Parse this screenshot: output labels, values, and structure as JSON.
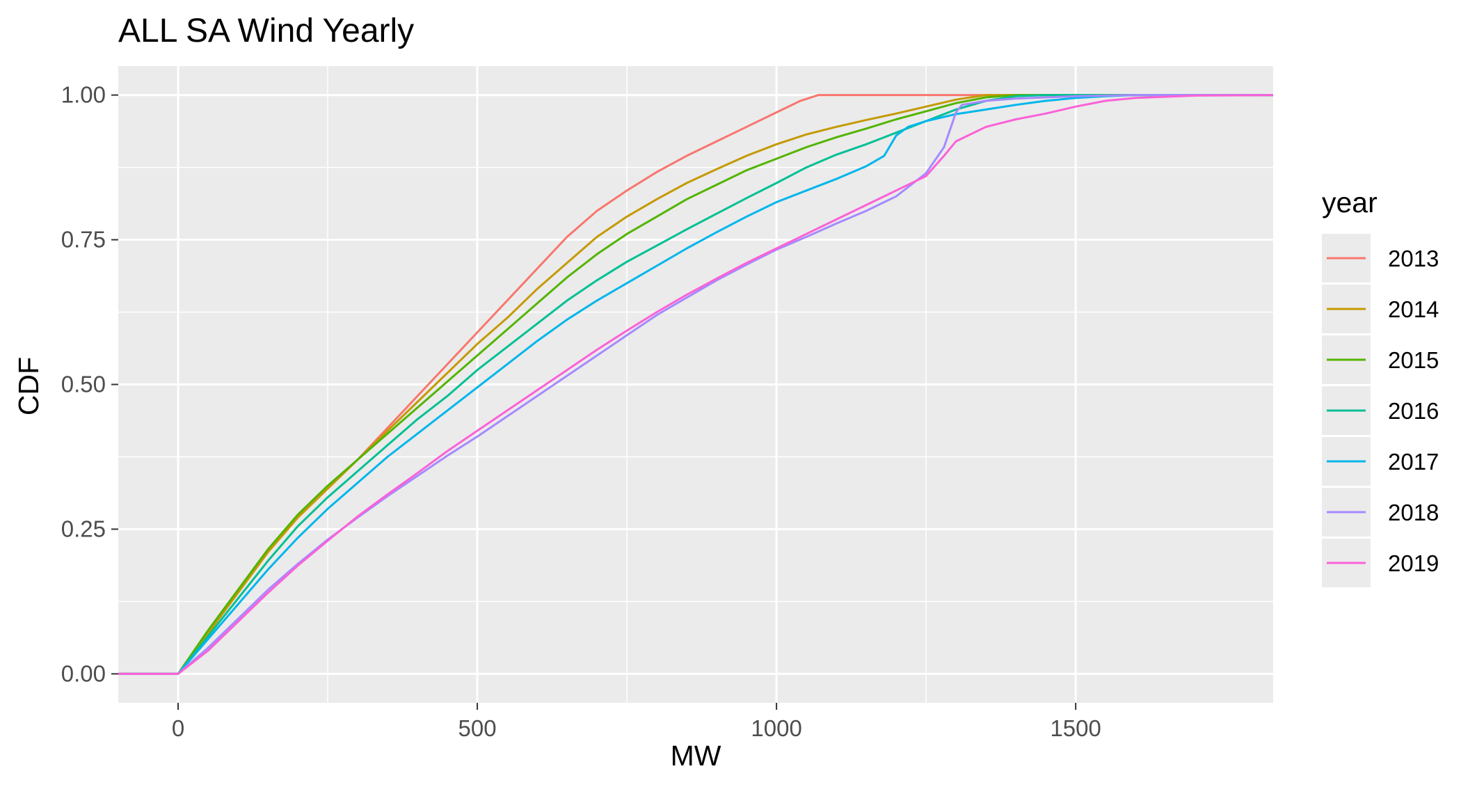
{
  "chart_data": {
    "type": "line",
    "title": "ALL SA Wind Yearly",
    "xlabel": "MW",
    "ylabel": "CDF",
    "xlim": [
      -100,
      1830
    ],
    "ylim": [
      -0.05,
      1.05
    ],
    "x_ticks": [
      0,
      500,
      1000,
      1500
    ],
    "x_tick_labels": [
      "0",
      "500",
      "1000",
      "1500"
    ],
    "y_ticks": [
      0,
      0.25,
      0.5,
      0.75,
      1
    ],
    "y_tick_labels": [
      "0.00",
      "0.25",
      "0.50",
      "0.75",
      "1.00"
    ],
    "grid": true,
    "legend": {
      "title": "year",
      "position": "right"
    },
    "series": [
      {
        "name": "2013",
        "color": "#F8766D",
        "points": [
          [
            -100,
            0
          ],
          [
            0,
            0
          ],
          [
            50,
            0.07
          ],
          [
            100,
            0.14
          ],
          [
            150,
            0.21
          ],
          [
            200,
            0.27
          ],
          [
            250,
            0.32
          ],
          [
            300,
            0.37
          ],
          [
            350,
            0.425
          ],
          [
            400,
            0.48
          ],
          [
            450,
            0.535
          ],
          [
            500,
            0.59
          ],
          [
            550,
            0.645
          ],
          [
            600,
            0.7
          ],
          [
            650,
            0.755
          ],
          [
            700,
            0.8
          ],
          [
            750,
            0.835
          ],
          [
            800,
            0.867
          ],
          [
            850,
            0.895
          ],
          [
            900,
            0.92
          ],
          [
            950,
            0.945
          ],
          [
            1000,
            0.97
          ],
          [
            1040,
            0.99
          ],
          [
            1070,
            1.0
          ],
          [
            1830,
            1.0
          ]
        ]
      },
      {
        "name": "2014",
        "color": "#C49A00",
        "points": [
          [
            -100,
            0
          ],
          [
            0,
            0
          ],
          [
            50,
            0.07
          ],
          [
            100,
            0.14
          ],
          [
            150,
            0.21
          ],
          [
            200,
            0.27
          ],
          [
            250,
            0.32
          ],
          [
            300,
            0.37
          ],
          [
            350,
            0.42
          ],
          [
            400,
            0.47
          ],
          [
            450,
            0.52
          ],
          [
            500,
            0.57
          ],
          [
            550,
            0.615
          ],
          [
            600,
            0.665
          ],
          [
            650,
            0.71
          ],
          [
            700,
            0.755
          ],
          [
            750,
            0.79
          ],
          [
            800,
            0.82
          ],
          [
            850,
            0.848
          ],
          [
            900,
            0.872
          ],
          [
            950,
            0.895
          ],
          [
            1000,
            0.915
          ],
          [
            1050,
            0.932
          ],
          [
            1100,
            0.945
          ],
          [
            1150,
            0.957
          ],
          [
            1200,
            0.968
          ],
          [
            1250,
            0.98
          ],
          [
            1300,
            0.992
          ],
          [
            1350,
            1.0
          ],
          [
            1830,
            1.0
          ]
        ]
      },
      {
        "name": "2015",
        "color": "#53B400",
        "points": [
          [
            -100,
            0
          ],
          [
            0,
            0
          ],
          [
            50,
            0.075
          ],
          [
            100,
            0.145
          ],
          [
            150,
            0.215
          ],
          [
            200,
            0.275
          ],
          [
            250,
            0.325
          ],
          [
            300,
            0.37
          ],
          [
            350,
            0.415
          ],
          [
            400,
            0.46
          ],
          [
            450,
            0.505
          ],
          [
            500,
            0.55
          ],
          [
            550,
            0.595
          ],
          [
            600,
            0.64
          ],
          [
            650,
            0.685
          ],
          [
            700,
            0.725
          ],
          [
            750,
            0.76
          ],
          [
            800,
            0.79
          ],
          [
            850,
            0.82
          ],
          [
            900,
            0.845
          ],
          [
            950,
            0.87
          ],
          [
            1000,
            0.89
          ],
          [
            1050,
            0.91
          ],
          [
            1100,
            0.927
          ],
          [
            1150,
            0.942
          ],
          [
            1200,
            0.958
          ],
          [
            1250,
            0.972
          ],
          [
            1300,
            0.986
          ],
          [
            1350,
            0.996
          ],
          [
            1400,
            1.0
          ],
          [
            1830,
            1.0
          ]
        ]
      },
      {
        "name": "2016",
        "color": "#00C094",
        "points": [
          [
            -100,
            0
          ],
          [
            0,
            0
          ],
          [
            50,
            0.065
          ],
          [
            100,
            0.13
          ],
          [
            150,
            0.195
          ],
          [
            200,
            0.255
          ],
          [
            250,
            0.305
          ],
          [
            300,
            0.35
          ],
          [
            350,
            0.395
          ],
          [
            400,
            0.44
          ],
          [
            450,
            0.48
          ],
          [
            500,
            0.525
          ],
          [
            550,
            0.565
          ],
          [
            600,
            0.605
          ],
          [
            650,
            0.645
          ],
          [
            700,
            0.68
          ],
          [
            750,
            0.712
          ],
          [
            800,
            0.74
          ],
          [
            850,
            0.768
          ],
          [
            900,
            0.795
          ],
          [
            950,
            0.822
          ],
          [
            1000,
            0.848
          ],
          [
            1050,
            0.875
          ],
          [
            1100,
            0.897
          ],
          [
            1150,
            0.915
          ],
          [
            1200,
            0.935
          ],
          [
            1250,
            0.955
          ],
          [
            1300,
            0.975
          ],
          [
            1350,
            0.99
          ],
          [
            1400,
            0.998
          ],
          [
            1450,
            1.0
          ],
          [
            1830,
            1.0
          ]
        ]
      },
      {
        "name": "2017",
        "color": "#00B6EB",
        "points": [
          [
            -100,
            0
          ],
          [
            0,
            0
          ],
          [
            50,
            0.06
          ],
          [
            100,
            0.12
          ],
          [
            150,
            0.18
          ],
          [
            200,
            0.235
          ],
          [
            250,
            0.285
          ],
          [
            300,
            0.33
          ],
          [
            350,
            0.375
          ],
          [
            400,
            0.415
          ],
          [
            450,
            0.455
          ],
          [
            500,
            0.495
          ],
          [
            550,
            0.535
          ],
          [
            600,
            0.575
          ],
          [
            650,
            0.612
          ],
          [
            700,
            0.645
          ],
          [
            750,
            0.675
          ],
          [
            800,
            0.705
          ],
          [
            850,
            0.735
          ],
          [
            900,
            0.763
          ],
          [
            950,
            0.79
          ],
          [
            1000,
            0.815
          ],
          [
            1050,
            0.835
          ],
          [
            1100,
            0.855
          ],
          [
            1150,
            0.877
          ],
          [
            1180,
            0.895
          ],
          [
            1200,
            0.93
          ],
          [
            1220,
            0.945
          ],
          [
            1250,
            0.955
          ],
          [
            1300,
            0.967
          ],
          [
            1350,
            0.975
          ],
          [
            1400,
            0.983
          ],
          [
            1450,
            0.99
          ],
          [
            1500,
            0.995
          ],
          [
            1550,
            0.998
          ],
          [
            1600,
            1.0
          ],
          [
            1830,
            1.0
          ]
        ]
      },
      {
        "name": "2018",
        "color": "#A58AFF",
        "points": [
          [
            -100,
            0
          ],
          [
            0,
            0
          ],
          [
            50,
            0.045
          ],
          [
            100,
            0.095
          ],
          [
            150,
            0.145
          ],
          [
            200,
            0.19
          ],
          [
            250,
            0.232
          ],
          [
            300,
            0.27
          ],
          [
            350,
            0.307
          ],
          [
            400,
            0.342
          ],
          [
            450,
            0.377
          ],
          [
            500,
            0.41
          ],
          [
            550,
            0.445
          ],
          [
            600,
            0.48
          ],
          [
            650,
            0.515
          ],
          [
            700,
            0.55
          ],
          [
            750,
            0.585
          ],
          [
            800,
            0.62
          ],
          [
            850,
            0.65
          ],
          [
            900,
            0.68
          ],
          [
            950,
            0.707
          ],
          [
            1000,
            0.733
          ],
          [
            1050,
            0.755
          ],
          [
            1100,
            0.778
          ],
          [
            1150,
            0.8
          ],
          [
            1200,
            0.825
          ],
          [
            1250,
            0.865
          ],
          [
            1280,
            0.91
          ],
          [
            1300,
            0.97
          ],
          [
            1310,
            0.983
          ],
          [
            1350,
            0.99
          ],
          [
            1400,
            0.994
          ],
          [
            1500,
            0.998
          ],
          [
            1600,
            1.0
          ],
          [
            1830,
            1.0
          ]
        ]
      },
      {
        "name": "2019",
        "color": "#FB61D7",
        "points": [
          [
            -100,
            0
          ],
          [
            0,
            0
          ],
          [
            50,
            0.04
          ],
          [
            100,
            0.09
          ],
          [
            150,
            0.14
          ],
          [
            200,
            0.187
          ],
          [
            250,
            0.23
          ],
          [
            300,
            0.272
          ],
          [
            350,
            0.31
          ],
          [
            400,
            0.347
          ],
          [
            450,
            0.385
          ],
          [
            500,
            0.42
          ],
          [
            550,
            0.455
          ],
          [
            600,
            0.49
          ],
          [
            650,
            0.525
          ],
          [
            700,
            0.56
          ],
          [
            750,
            0.593
          ],
          [
            800,
            0.625
          ],
          [
            850,
            0.655
          ],
          [
            900,
            0.683
          ],
          [
            950,
            0.71
          ],
          [
            1000,
            0.735
          ],
          [
            1050,
            0.76
          ],
          [
            1100,
            0.785
          ],
          [
            1150,
            0.81
          ],
          [
            1200,
            0.835
          ],
          [
            1250,
            0.86
          ],
          [
            1280,
            0.895
          ],
          [
            1300,
            0.92
          ],
          [
            1350,
            0.945
          ],
          [
            1400,
            0.958
          ],
          [
            1450,
            0.968
          ],
          [
            1500,
            0.98
          ],
          [
            1550,
            0.99
          ],
          [
            1600,
            0.995
          ],
          [
            1700,
            0.999
          ],
          [
            1830,
            1.0
          ]
        ]
      }
    ]
  }
}
